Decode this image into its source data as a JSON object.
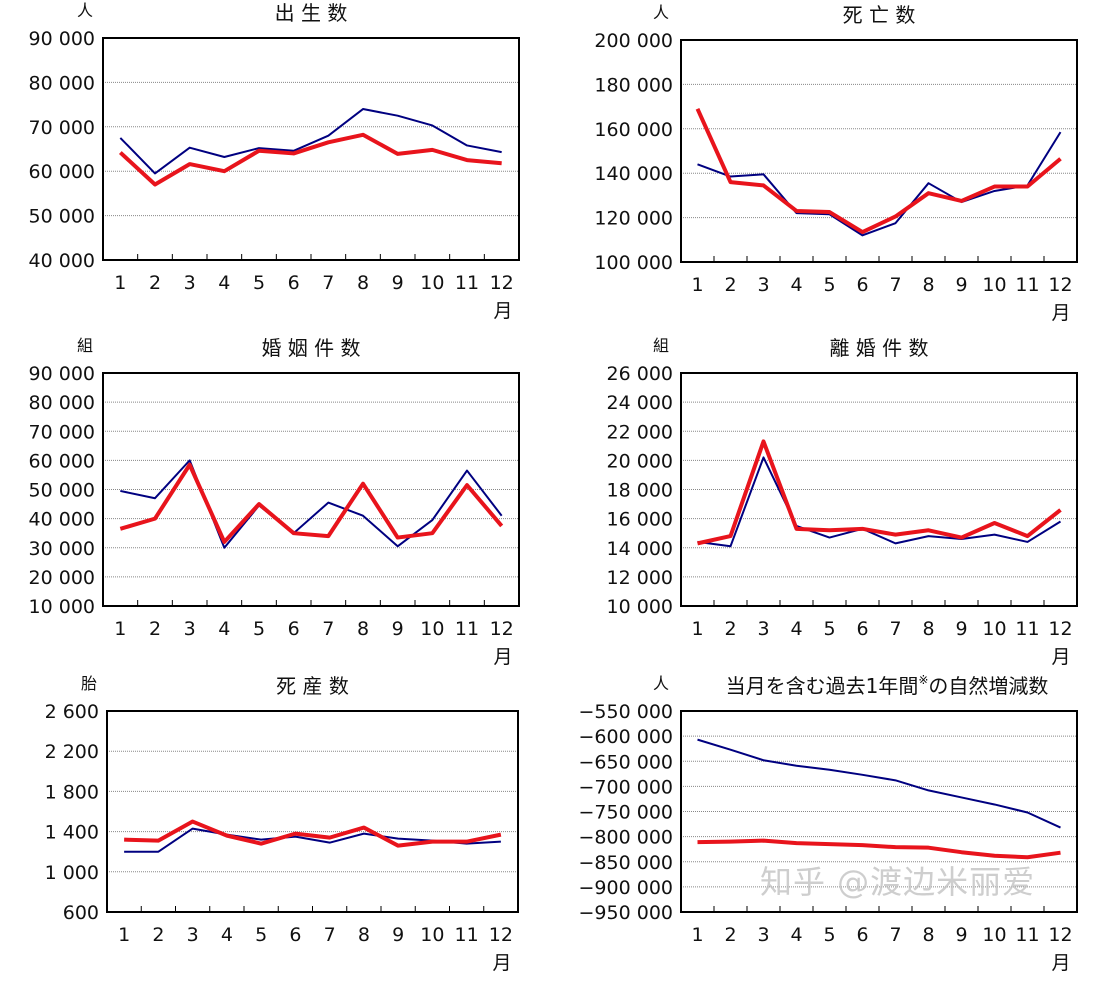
{
  "x_unit": "月",
  "watermark": "知乎 @渡边米丽爱",
  "colors": {
    "blue": "#000080",
    "red": "#e8141c"
  },
  "chart_data": [
    {
      "type": "line",
      "title": "出 生 数",
      "unit": "人",
      "categories": [
        "1",
        "2",
        "3",
        "4",
        "5",
        "6",
        "7",
        "8",
        "9",
        "10",
        "11",
        "12"
      ],
      "ylim": [
        40000,
        90000
      ],
      "yticks": [
        40000,
        50000,
        60000,
        70000,
        80000,
        90000
      ],
      "ytick_labels": [
        "40 000",
        "50 000",
        "60 000",
        "70 000",
        "80 000",
        "90 000"
      ],
      "grid": true,
      "series": [
        {
          "color": "#000080",
          "values": [
            67500,
            59500,
            65300,
            63200,
            65200,
            64600,
            68000,
            74000,
            72500,
            70300,
            65800,
            64300
          ]
        },
        {
          "color": "#e8141c",
          "values": [
            64200,
            57000,
            61600,
            60000,
            64600,
            64000,
            66500,
            68200,
            63900,
            64800,
            62500,
            61800
          ]
        }
      ]
    },
    {
      "type": "line",
      "title": "死 亡 数",
      "unit": "人",
      "categories": [
        "1",
        "2",
        "3",
        "4",
        "5",
        "6",
        "7",
        "8",
        "9",
        "10",
        "11",
        "12"
      ],
      "ylim": [
        100000,
        200000
      ],
      "yticks": [
        100000,
        120000,
        140000,
        160000,
        180000,
        200000
      ],
      "ytick_labels": [
        "100 000",
        "120 000",
        "140 000",
        "160 000",
        "180 000",
        "200 000"
      ],
      "grid": true,
      "series": [
        {
          "color": "#000080",
          "values": [
            144000,
            138500,
            139500,
            122000,
            121500,
            112000,
            117500,
            135500,
            127000,
            132000,
            134500,
            158500
          ]
        },
        {
          "color": "#e8141c",
          "values": [
            169000,
            136000,
            134500,
            123000,
            122500,
            113500,
            120500,
            131000,
            127500,
            134000,
            134000,
            146500
          ]
        }
      ]
    },
    {
      "type": "line",
      "title": "婚 姻 件 数",
      "unit": "組",
      "categories": [
        "1",
        "2",
        "3",
        "4",
        "5",
        "6",
        "7",
        "8",
        "9",
        "10",
        "11",
        "12"
      ],
      "ylim": [
        10000,
        90000
      ],
      "yticks": [
        10000,
        20000,
        30000,
        40000,
        50000,
        60000,
        70000,
        80000,
        90000
      ],
      "ytick_labels": [
        "10 000",
        "20 000",
        "30 000",
        "40 000",
        "50 000",
        "60 000",
        "70 000",
        "80 000",
        "90 000"
      ],
      "grid": true,
      "series": [
        {
          "color": "#000080",
          "values": [
            49500,
            47000,
            60000,
            30000,
            44500,
            35000,
            45500,
            41000,
            30500,
            39500,
            56500,
            41000
          ]
        },
        {
          "color": "#e8141c",
          "values": [
            36500,
            40000,
            58500,
            32000,
            45000,
            35000,
            34000,
            52000,
            33500,
            35000,
            51500,
            37500
          ]
        }
      ]
    },
    {
      "type": "line",
      "title": "離 婚 件 数",
      "unit": "組",
      "categories": [
        "1",
        "2",
        "3",
        "4",
        "5",
        "6",
        "7",
        "8",
        "9",
        "10",
        "11",
        "12"
      ],
      "ylim": [
        10000,
        26000
      ],
      "yticks": [
        10000,
        12000,
        14000,
        16000,
        18000,
        20000,
        22000,
        24000,
        26000
      ],
      "ytick_labels": [
        "10 000",
        "12 000",
        "14 000",
        "16 000",
        "18 000",
        "20 000",
        "22 000",
        "24 000",
        "26 000"
      ],
      "grid": true,
      "series": [
        {
          "color": "#000080",
          "values": [
            14400,
            14100,
            20200,
            15500,
            14700,
            15300,
            14300,
            14800,
            14600,
            14900,
            14400,
            15800
          ]
        },
        {
          "color": "#e8141c",
          "values": [
            14300,
            14800,
            21300,
            15300,
            15200,
            15300,
            14900,
            15200,
            14700,
            15700,
            14800,
            16600
          ]
        }
      ]
    },
    {
      "type": "line",
      "title": "死 産 数",
      "unit": "胎",
      "categories": [
        "1",
        "2",
        "3",
        "4",
        "5",
        "6",
        "7",
        "8",
        "9",
        "10",
        "11",
        "12"
      ],
      "ylim": [
        600,
        2600
      ],
      "yticks": [
        600,
        1000,
        1400,
        1800,
        2200,
        2600
      ],
      "ytick_labels": [
        "600",
        "1 000",
        "1 400",
        "1 800",
        "2 200",
        "2 600"
      ],
      "grid": true,
      "series": [
        {
          "color": "#000080",
          "values": [
            1200,
            1200,
            1430,
            1370,
            1320,
            1350,
            1290,
            1380,
            1330,
            1310,
            1280,
            1300
          ]
        },
        {
          "color": "#e8141c",
          "values": [
            1320,
            1310,
            1500,
            1360,
            1280,
            1380,
            1340,
            1440,
            1260,
            1300,
            1300,
            1370
          ]
        }
      ]
    },
    {
      "type": "line",
      "title": "当月を含む過去1年間",
      "title_mark": "※",
      "title_suffix": "の自然増減数",
      "unit": "人",
      "categories": [
        "1",
        "2",
        "3",
        "4",
        "5",
        "6",
        "7",
        "8",
        "9",
        "10",
        "11",
        "12"
      ],
      "ylim": [
        -950000,
        -550000
      ],
      "yticks": [
        -950000,
        -900000,
        -850000,
        -800000,
        -750000,
        -700000,
        -650000,
        -600000,
        -550000
      ],
      "ytick_labels": [
        "−950 000",
        "−900 000",
        "−850 000",
        "−800 000",
        "−750 000",
        "−700 000",
        "−650 000",
        "−600 000",
        "−550 000"
      ],
      "grid": true,
      "series": [
        {
          "color": "#000080",
          "values": [
            -607000,
            -627000,
            -648000,
            -659000,
            -667000,
            -677000,
            -688000,
            -708000,
            -722000,
            -736000,
            -752000,
            -782000
          ]
        },
        {
          "color": "#e8141c",
          "values": [
            -811000,
            -810000,
            -808000,
            -813000,
            -815000,
            -817000,
            -821000,
            -822000,
            -831000,
            -838000,
            -841000,
            -832000
          ]
        }
      ]
    }
  ]
}
